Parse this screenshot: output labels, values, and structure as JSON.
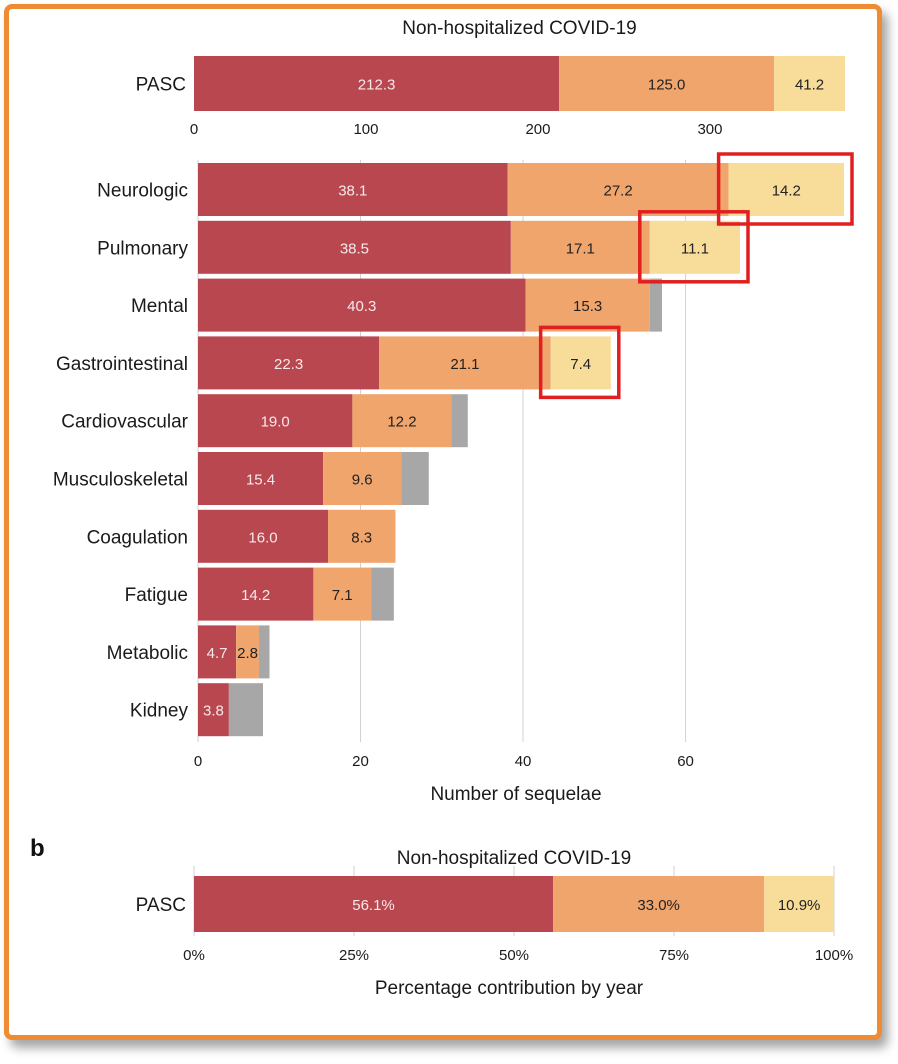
{
  "colors": {
    "year1": "#b94750",
    "year2": "#f0a56c",
    "year3": "#f8dc9a",
    "other": "#a7a7a7",
    "highlight": "#e02020",
    "frame": "#ef8b33",
    "grid": "#d2d2d2"
  },
  "panel_b_letter": "b",
  "chart_data": [
    {
      "id": "a-top",
      "type": "bar",
      "orientation": "horizontal",
      "stacked": true,
      "title": "Non-hospitalized COVID-19",
      "categories": [
        "PASC"
      ],
      "series": [
        {
          "values": [
            212.3
          ],
          "labels": [
            "212.3"
          ],
          "color_key": "year1"
        },
        {
          "values": [
            125.0
          ],
          "labels": [
            "125.0"
          ],
          "color_key": "year2"
        },
        {
          "values": [
            41.2
          ],
          "labels": [
            "41.2"
          ],
          "color_key": "year3"
        }
      ],
      "xlim": [
        0,
        378.5
      ],
      "xticks": [
        0,
        100,
        200,
        300
      ],
      "xtick_labels": [
        "0",
        "100",
        "200",
        "300"
      ],
      "xlabel": "",
      "grid": false
    },
    {
      "id": "a-organ",
      "type": "bar",
      "orientation": "horizontal",
      "stacked": true,
      "title": "",
      "categories": [
        "Neurologic",
        "Pulmonary",
        "Mental",
        "Gastrointestinal",
        "Cardiovascular",
        "Musculoskeletal",
        "Coagulation",
        "Fatigue",
        "Metabolic",
        "Kidney"
      ],
      "series": [
        {
          "values": [
            38.1,
            38.5,
            40.3,
            22.3,
            19.0,
            15.4,
            16.0,
            14.2,
            4.7,
            3.8
          ],
          "labels": [
            "38.1",
            "38.5",
            "40.3",
            "22.3",
            "19.0",
            "15.4",
            "16.0",
            "14.2",
            "4.7",
            "3.8"
          ],
          "color_key": "year1"
        },
        {
          "values": [
            27.2,
            17.1,
            15.3,
            21.1,
            12.2,
            9.6,
            8.3,
            7.1,
            2.8,
            0
          ],
          "labels": [
            "27.2",
            "17.1",
            "15.3",
            "21.1",
            "12.2",
            "9.6",
            "8.3",
            "7.1",
            "2.8",
            ""
          ],
          "color_key": "year2"
        },
        {
          "values": [
            14.2,
            11.1,
            0,
            7.4,
            0,
            0,
            0,
            0,
            0,
            0
          ],
          "labels": [
            "14.2",
            "11.1",
            "",
            "7.4",
            "",
            "",
            "",
            "",
            "",
            ""
          ],
          "color_key": "year3"
        },
        {
          "values": [
            0,
            0,
            1.5,
            0,
            2.0,
            3.4,
            0,
            2.8,
            1.3,
            4.2
          ],
          "labels": [
            "",
            "",
            "",
            "",
            "",
            "",
            "",
            "",
            "",
            ""
          ],
          "color_key": "other"
        }
      ],
      "highlighted": [
        "Neurologic",
        "Pulmonary",
        "Gastrointestinal"
      ],
      "xlim": [
        0,
        79.5
      ],
      "xticks": [
        0,
        20,
        40,
        60
      ],
      "xtick_labels": [
        "0",
        "20",
        "40",
        "60"
      ],
      "xlabel": "Number of sequelae",
      "grid": true
    },
    {
      "id": "b",
      "type": "bar",
      "orientation": "horizontal",
      "stacked": true,
      "title": "Non-hospitalized COVID-19",
      "categories": [
        "PASC"
      ],
      "series": [
        {
          "values": [
            56.1
          ],
          "labels": [
            "56.1%"
          ],
          "color_key": "year1"
        },
        {
          "values": [
            33.0
          ],
          "labels": [
            "33.0%"
          ],
          "color_key": "year2"
        },
        {
          "values": [
            10.9
          ],
          "labels": [
            "10.9%"
          ],
          "color_key": "year3"
        }
      ],
      "xlim": [
        0,
        100
      ],
      "xticks": [
        0,
        25,
        50,
        75,
        100
      ],
      "xtick_labels": [
        "0%",
        "25%",
        "50%",
        "75%",
        "100%"
      ],
      "xlabel": "Percentage contribution by year",
      "grid": true
    }
  ]
}
